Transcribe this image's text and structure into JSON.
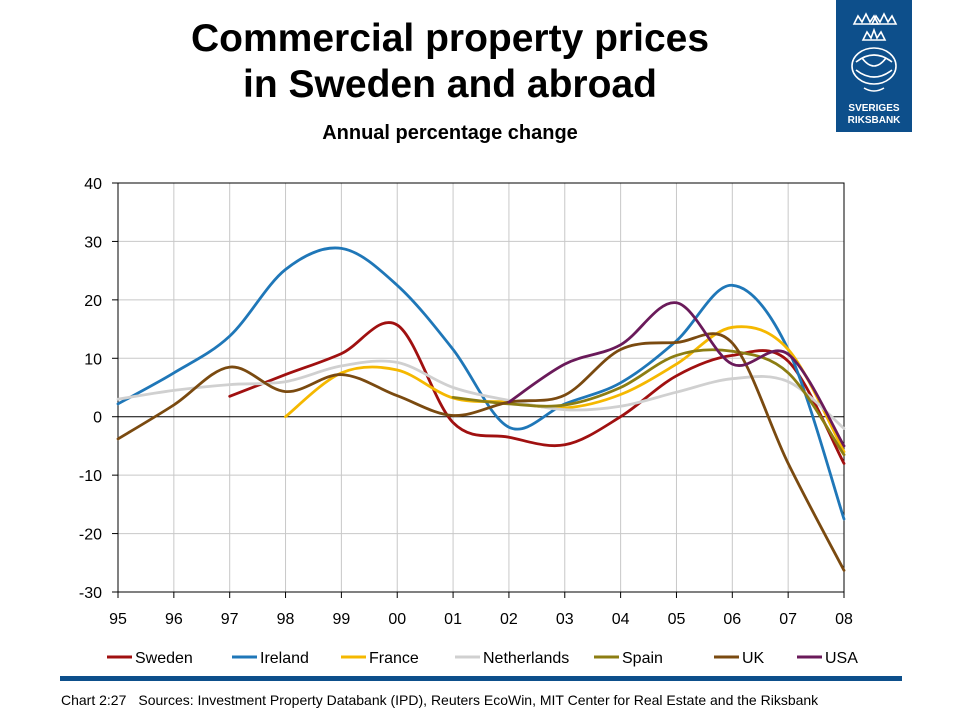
{
  "header": {
    "title_line1": "Commercial property prices",
    "title_line2": "in Sweden and abroad",
    "subtitle": "Annual percentage change"
  },
  "logo": {
    "line1": "SVERIGES",
    "line2": "RIKSBANK",
    "color": "#0d4f8b"
  },
  "footer": {
    "chart_number": "Chart 2:27",
    "sources": "Sources: Investment Property Databank (IPD), Reuters EcoWin, MIT Center for Real Estate and the Riksbank"
  },
  "chart_data": {
    "type": "line",
    "x": [
      "95",
      "96",
      "97",
      "98",
      "99",
      "00",
      "01",
      "02",
      "03",
      "04",
      "05",
      "06",
      "07",
      "08"
    ],
    "ylim": [
      -30,
      40
    ],
    "yticks": [
      40,
      30,
      20,
      10,
      0,
      -10,
      -20,
      -30
    ],
    "grid": true,
    "legend_position": "bottom",
    "series": [
      {
        "name": "Sweden",
        "color": "#a01010",
        "values": [
          null,
          null,
          3.5,
          7.2,
          10.8,
          15.7,
          -1,
          -3.5,
          -4.8,
          0,
          7,
          10.5,
          9.5,
          -8
        ]
      },
      {
        "name": "Ireland",
        "color": "#1f77b8",
        "values": [
          2.2,
          7.5,
          13.8,
          25.2,
          28.8,
          22.5,
          11.5,
          -1.8,
          2.2,
          5.8,
          13,
          22.5,
          11.5,
          -17.5
        ]
      },
      {
        "name": "France",
        "color": "#f5b800",
        "values": [
          null,
          null,
          null,
          0,
          7.5,
          8,
          3.2,
          2.5,
          1.5,
          3.8,
          9,
          15.3,
          11.5,
          -6
        ]
      },
      {
        "name": "Netherlands",
        "color": "#d0d0d0",
        "values": [
          3,
          4.5,
          5.5,
          6,
          8.7,
          9.3,
          5,
          2.8,
          1.2,
          1.8,
          4.2,
          6.5,
          6,
          -2
        ]
      },
      {
        "name": "Spain",
        "color": "#8c7d12",
        "values": [
          null,
          null,
          null,
          null,
          null,
          null,
          3.3,
          2.2,
          2,
          5,
          10.5,
          11.2,
          7.5,
          -6.5
        ]
      },
      {
        "name": "UK",
        "color": "#7a4a10",
        "values": [
          -3.8,
          2,
          8.5,
          4.3,
          7.2,
          3.6,
          0.2,
          2.5,
          3.7,
          11.5,
          12.7,
          12.6,
          -8,
          -26.3
        ]
      },
      {
        "name": "USA",
        "color": "#6a1a5a",
        "values": [
          null,
          null,
          null,
          null,
          null,
          null,
          null,
          2.5,
          9,
          12.3,
          19.5,
          9,
          10.7,
          -5
        ]
      }
    ]
  }
}
